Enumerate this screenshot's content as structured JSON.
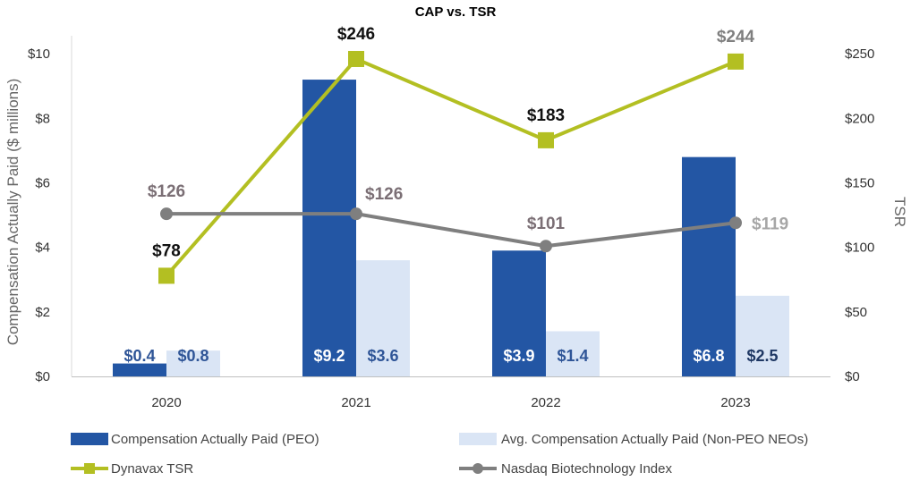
{
  "chart_data": {
    "type": "bar+line",
    "title": "CAP vs. TSR",
    "categories": [
      "2020",
      "2021",
      "2022",
      "2023"
    ],
    "ylabel": "Compensation Actually Paid ($ millions)",
    "y2label": "TSR",
    "ylim": [
      0,
      10.56
    ],
    "y2lim": [
      0,
      264
    ],
    "y_ticks": [
      {
        "value": 0,
        "label": "$0"
      },
      {
        "value": 2,
        "label": "$2"
      },
      {
        "value": 4,
        "label": "$4"
      },
      {
        "value": 6,
        "label": "$6"
      },
      {
        "value": 8,
        "label": "$8"
      },
      {
        "value": 10,
        "label": "$10"
      }
    ],
    "y2_ticks": [
      {
        "value": 0,
        "label": "$0"
      },
      {
        "value": 50,
        "label": "$50"
      },
      {
        "value": 100,
        "label": "$100"
      },
      {
        "value": 150,
        "label": "$150"
      },
      {
        "value": 200,
        "label": "$200"
      },
      {
        "value": 250,
        "label": "$250"
      }
    ],
    "bar_series": [
      {
        "name": "Compensation Actually Paid (PEO)",
        "color": "#2356a4",
        "values": [
          0.4,
          9.2,
          3.9,
          6.8
        ],
        "labels": [
          "$0.4",
          "$9.2",
          "$3.9",
          "$6.8"
        ],
        "label_colors": [
          "#2f5597",
          "#ffffff",
          "#ffffff",
          "#ffffff"
        ]
      },
      {
        "name": "Avg. Compensation Actually Paid (Non-PEO NEOs)",
        "color": "#dae5f5",
        "values": [
          0.8,
          3.6,
          1.4,
          2.5
        ],
        "labels": [
          "$0.8",
          "$3.6",
          "$1.4",
          "$2.5"
        ],
        "label_colors": [
          "#2f5597",
          "#2f5597",
          "#2f5597",
          "#1f3864"
        ]
      }
    ],
    "line_series": [
      {
        "name": "Dynavax TSR",
        "color": "#b3bf22",
        "marker": "square",
        "values": [
          78,
          246,
          183,
          244
        ],
        "labels": [
          "$78",
          "$246",
          "$183",
          "$244"
        ],
        "label_colors": [
          "#111111",
          "#111111",
          "#111111",
          "#7f7f7f"
        ]
      },
      {
        "name": "Nasdaq Biotechnology Index",
        "color": "#7f7f7f",
        "marker": "circle",
        "values": [
          126,
          126,
          101,
          119
        ],
        "labels": [
          "$126",
          "$126",
          "$101",
          "$119"
        ],
        "label_colors": [
          "#7b6f75",
          "#7b6f75",
          "#7b6f75",
          "#a6a6a6"
        ]
      }
    ],
    "legend": {
      "position": "bottom",
      "items": [
        "Compensation Actually Paid (PEO)",
        "Avg. Compensation Actually Paid (Non-PEO NEOs)",
        "Dynavax TSR",
        "Nasdaq Biotechnology Index"
      ]
    }
  }
}
